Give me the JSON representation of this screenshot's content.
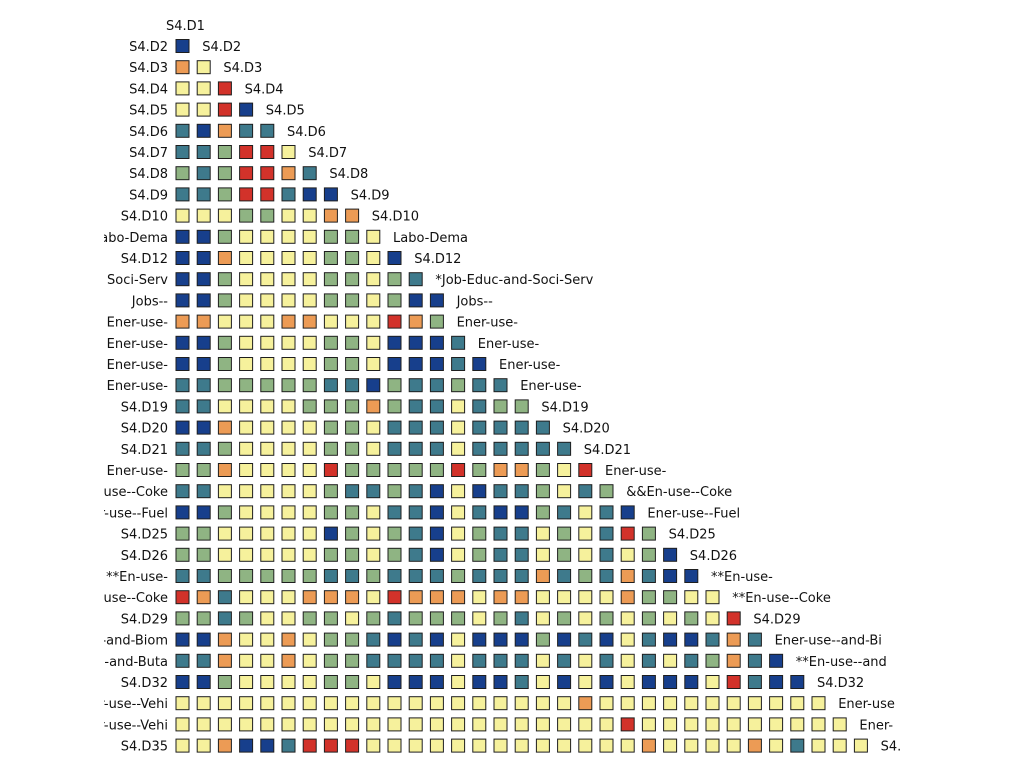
{
  "chart_data": {
    "type": "heatmap",
    "title": "",
    "xlabel": "",
    "ylabel": "",
    "legend": "none",
    "color_scale": [
      {
        "code": 0,
        "name": "dark-blue",
        "hex": "#173f8c"
      },
      {
        "code": 1,
        "name": "teal",
        "hex": "#3e7a8c"
      },
      {
        "code": 2,
        "name": "sage",
        "hex": "#8fb483"
      },
      {
        "code": 3,
        "name": "pale-yellow",
        "hex": "#f6f19c"
      },
      {
        "code": 4,
        "name": "orange",
        "hex": "#ec9b55"
      },
      {
        "code": 5,
        "name": "red",
        "hex": "#d2322a"
      }
    ],
    "top_label": "S4.D1",
    "rows": [
      {
        "label": "S4.D2",
        "diag": "S4.D2",
        "cells": [
          0
        ]
      },
      {
        "label": "S4.D3",
        "diag": "S4.D3",
        "cells": [
          4,
          3
        ]
      },
      {
        "label": "S4.D4",
        "diag": "S4.D4",
        "cells": [
          3,
          3,
          5
        ]
      },
      {
        "label": "S4.D5",
        "diag": "S4.D5",
        "cells": [
          3,
          3,
          5,
          0
        ]
      },
      {
        "label": "S4.D6",
        "diag": "S4.D6",
        "cells": [
          1,
          0,
          4,
          1,
          1
        ]
      },
      {
        "label": "S4.D7",
        "diag": "S4.D7",
        "cells": [
          1,
          1,
          2,
          5,
          5,
          3
        ]
      },
      {
        "label": "S4.D8",
        "diag": "S4.D8",
        "cells": [
          2,
          1,
          2,
          5,
          5,
          4,
          1
        ]
      },
      {
        "label": "S4.D9",
        "diag": "S4.D9",
        "cells": [
          1,
          1,
          2,
          5,
          5,
          1,
          0,
          0
        ]
      },
      {
        "label": "S4.D10",
        "diag": "S4.D10",
        "cells": [
          3,
          3,
          3,
          2,
          2,
          3,
          3,
          4,
          4
        ]
      },
      {
        "label": "Labo-Dema",
        "diag": "Labo-Dema",
        "cells": [
          0,
          0,
          2,
          3,
          3,
          3,
          3,
          2,
          2,
          3
        ]
      },
      {
        "label": "S4.D12",
        "diag": "S4.D12",
        "cells": [
          0,
          0,
          4,
          3,
          3,
          3,
          3,
          2,
          2,
          3,
          0
        ]
      },
      {
        "label": "Soci-Serv",
        "diag": "*Job-Educ-and-Soci-Serv",
        "cells": [
          0,
          0,
          2,
          3,
          3,
          3,
          3,
          2,
          2,
          3,
          2,
          1
        ]
      },
      {
        "label": "Jobs--",
        "diag": "Jobs--",
        "cells": [
          0,
          0,
          2,
          3,
          3,
          3,
          3,
          2,
          2,
          3,
          2,
          0,
          0
        ]
      },
      {
        "label": "Ener-use-",
        "diag": "Ener-use-",
        "cells": [
          4,
          4,
          3,
          3,
          3,
          4,
          4,
          3,
          3,
          3,
          5,
          4,
          2
        ]
      },
      {
        "label": "Ener-use-",
        "diag": "Ener-use-",
        "cells": [
          0,
          0,
          2,
          3,
          3,
          3,
          3,
          2,
          2,
          3,
          0,
          0,
          0,
          1
        ]
      },
      {
        "label": "Ener-use-",
        "diag": "Ener-use-",
        "cells": [
          0,
          0,
          2,
          3,
          3,
          3,
          3,
          2,
          2,
          3,
          0,
          0,
          0,
          1,
          0
        ]
      },
      {
        "label": "Ener-use-",
        "diag": "Ener-use-",
        "cells": [
          1,
          1,
          2,
          2,
          2,
          2,
          2,
          1,
          1,
          0,
          2,
          1,
          1,
          2,
          1,
          1
        ]
      },
      {
        "label": "S4.D19",
        "diag": "S4.D19",
        "cells": [
          1,
          1,
          3,
          3,
          3,
          3,
          2,
          2,
          2,
          4,
          2,
          1,
          1,
          3,
          1,
          2,
          2
        ]
      },
      {
        "label": "S4.D20",
        "diag": "S4.D20",
        "cells": [
          0,
          0,
          4,
          3,
          3,
          3,
          3,
          2,
          2,
          3,
          1,
          1,
          1,
          3,
          1,
          1,
          1,
          1
        ]
      },
      {
        "label": "S4.D21",
        "diag": "S4.D21",
        "cells": [
          1,
          1,
          2,
          3,
          3,
          3,
          3,
          2,
          2,
          3,
          1,
          1,
          1,
          3,
          1,
          1,
          1,
          1,
          1
        ]
      },
      {
        "label": "Ener-use-",
        "diag": "Ener-use-",
        "cells": [
          2,
          2,
          4,
          3,
          3,
          3,
          3,
          5,
          2,
          2,
          2,
          2,
          2,
          5,
          2,
          4,
          4,
          2,
          3,
          5
        ]
      },
      {
        "label": "Ener-use--Coke",
        "diag": "&&En-use--Coke",
        "cells": [
          1,
          1,
          3,
          3,
          3,
          3,
          3,
          2,
          1,
          1,
          2,
          1,
          0,
          3,
          0,
          1,
          1,
          2,
          3,
          1,
          2
        ]
      },
      {
        "label": "Ener-use--Fuel",
        "diag": "Ener-use--Fuel",
        "cells": [
          0,
          0,
          2,
          3,
          3,
          3,
          3,
          2,
          2,
          3,
          1,
          1,
          0,
          3,
          1,
          0,
          0,
          2,
          1,
          3,
          1,
          0
        ]
      },
      {
        "label": "S4.D25",
        "diag": "S4.D25",
        "cells": [
          2,
          2,
          3,
          3,
          3,
          3,
          3,
          0,
          2,
          3,
          2,
          1,
          0,
          3,
          2,
          1,
          1,
          3,
          2,
          3,
          1,
          5,
          2
        ]
      },
      {
        "label": "S4.D26",
        "diag": "S4.D26",
        "cells": [
          2,
          2,
          3,
          3,
          3,
          3,
          3,
          2,
          2,
          3,
          2,
          1,
          0,
          3,
          2,
          1,
          1,
          3,
          2,
          3,
          1,
          3,
          2,
          0
        ]
      },
      {
        "label": "**En-use-",
        "diag": "**En-use-",
        "cells": [
          1,
          1,
          2,
          2,
          2,
          2,
          2,
          1,
          1,
          2,
          1,
          1,
          1,
          2,
          1,
          1,
          1,
          4,
          1,
          2,
          1,
          4,
          1,
          0,
          0
        ]
      },
      {
        "label": "Ener-use--Coke",
        "diag": "**En-use--Coke",
        "cells": [
          5,
          4,
          1,
          3,
          3,
          3,
          4,
          4,
          4,
          3,
          5,
          4,
          4,
          4,
          3,
          4,
          4,
          3,
          3,
          3,
          3,
          4,
          2,
          2,
          3,
          3
        ]
      },
      {
        "label": "S4.D29",
        "diag": "S4.D29",
        "cells": [
          2,
          2,
          1,
          2,
          3,
          3,
          2,
          2,
          3,
          2,
          1,
          2,
          2,
          2,
          3,
          2,
          1,
          3,
          2,
          3,
          2,
          3,
          2,
          3,
          2,
          3,
          5
        ]
      },
      {
        "label": "Ener-use--and-Biom",
        "diag": "Ener-use--and-Bi",
        "cells": [
          0,
          0,
          4,
          3,
          3,
          4,
          3,
          2,
          2,
          1,
          0,
          1,
          0,
          3,
          0,
          0,
          0,
          2,
          0,
          1,
          0,
          3,
          1,
          0,
          0,
          1,
          4,
          1
        ]
      },
      {
        "label": "Ener-use--and-Buta",
        "diag": "**En-use--and",
        "cells": [
          1,
          1,
          4,
          3,
          3,
          4,
          3,
          2,
          2,
          1,
          1,
          1,
          1,
          3,
          1,
          1,
          1,
          3,
          1,
          3,
          1,
          3,
          1,
          3,
          1,
          2,
          4,
          1,
          0
        ]
      },
      {
        "label": "S4.D32",
        "diag": "S4.D32",
        "cells": [
          0,
          0,
          2,
          3,
          3,
          3,
          3,
          2,
          2,
          3,
          0,
          0,
          0,
          3,
          0,
          0,
          1,
          3,
          0,
          3,
          0,
          3,
          0,
          0,
          0,
          3,
          5,
          1,
          0,
          0
        ]
      },
      {
        "label": "Ener-use--Vehi",
        "diag": "Ener-use",
        "cells": [
          3,
          3,
          3,
          3,
          3,
          3,
          3,
          3,
          3,
          3,
          3,
          3,
          3,
          3,
          3,
          3,
          3,
          3,
          3,
          4,
          3,
          3,
          3,
          3,
          3,
          3,
          3,
          3,
          3,
          3,
          3
        ]
      },
      {
        "label": "Ener-use--Vehi",
        "diag": "Ener-",
        "cells": [
          3,
          3,
          3,
          3,
          3,
          3,
          3,
          3,
          3,
          3,
          3,
          3,
          3,
          3,
          3,
          3,
          3,
          3,
          3,
          3,
          3,
          5,
          3,
          3,
          3,
          3,
          3,
          3,
          3,
          3,
          3,
          3
        ]
      },
      {
        "label": "S4.D35",
        "diag": "S4.",
        "cells": [
          3,
          3,
          4,
          0,
          0,
          1,
          5,
          5,
          5,
          3,
          3,
          3,
          3,
          3,
          3,
          3,
          3,
          3,
          3,
          3,
          3,
          3,
          4,
          3,
          3,
          3,
          3,
          4,
          3,
          1,
          3,
          3,
          3
        ]
      }
    ]
  }
}
